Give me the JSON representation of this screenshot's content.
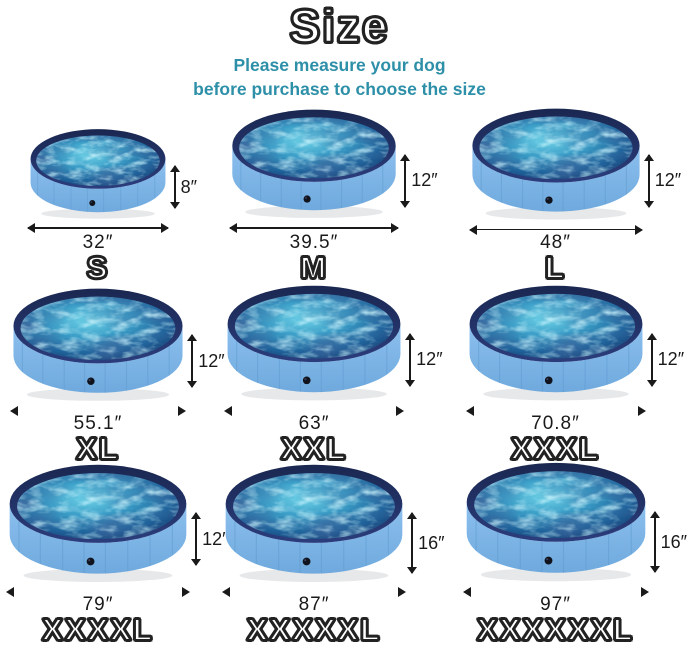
{
  "header": {
    "title": "Size",
    "subtitle_line1": "Please measure your dog",
    "subtitle_line2": "before purchase to choose the size"
  },
  "pools": [
    {
      "size": "S",
      "width": "32″",
      "height": "8″"
    },
    {
      "size": "M",
      "width": "39.5″",
      "height": "12″"
    },
    {
      "size": "L",
      "width": "48″",
      "height": "12″"
    },
    {
      "size": "XL",
      "width": "55.1″",
      "height": "12″"
    },
    {
      "size": "XXL",
      "width": "63″",
      "height": "12″"
    },
    {
      "size": "XXXL",
      "width": "70.8″",
      "height": "12″"
    },
    {
      "size": "XXXXL",
      "width": "79″",
      "height": "12″"
    },
    {
      "size": "XXXXXL",
      "width": "87″",
      "height": "16″"
    },
    {
      "size": "XXXXXXL",
      "width": "97″",
      "height": "16″"
    }
  ],
  "colors": {
    "subtitle_teal": "#2d8fa8",
    "pool_wall_light": "#8cc0ef",
    "pool_wall_dark": "#6fa9dd",
    "rim_navy_top": "#1a2750",
    "rim_navy_bottom": "#2b3d7d",
    "water_highlight": "#6fd3e8",
    "water_mid": "#3b9ec7",
    "water_deep": "#1f649c",
    "water_edge": "#142c5e",
    "dimension_ink": "#1a1a1a",
    "outline_ink": "#222222"
  }
}
